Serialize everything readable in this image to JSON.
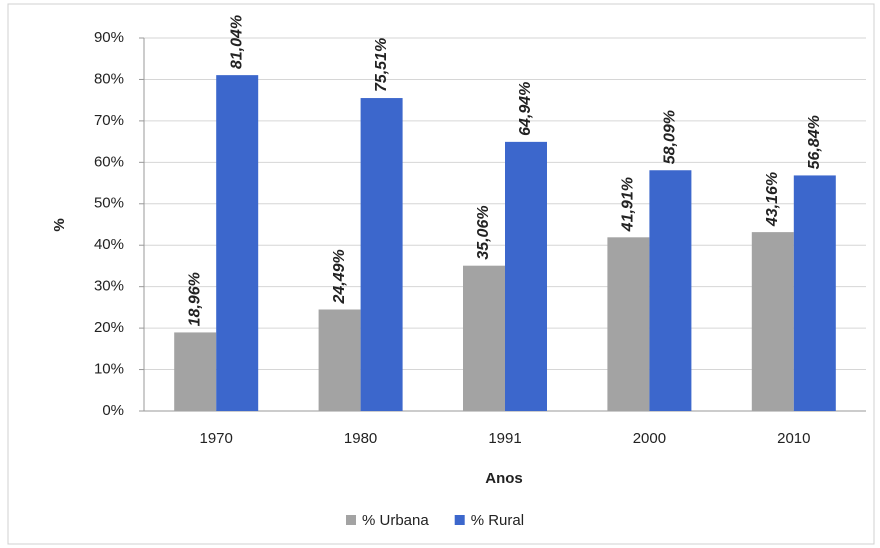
{
  "chart_data": {
    "type": "bar",
    "categories": [
      "1970",
      "1980",
      "1991",
      "2000",
      "2010"
    ],
    "series": [
      {
        "name": "% Urbana",
        "color": "#a3a3a3",
        "values": [
          18.96,
          24.49,
          35.06,
          41.91,
          43.16
        ],
        "value_labels": [
          "18,96%",
          "24,49%",
          "35,06%",
          "41,91%",
          "43,16%"
        ]
      },
      {
        "name": "% Rural",
        "color": "#3c67cc",
        "values": [
          81.04,
          75.51,
          64.94,
          58.09,
          56.84
        ],
        "value_labels": [
          "81,04%",
          "75,51%",
          "64,94%",
          "58,09%",
          "56,84%"
        ]
      }
    ],
    "xlabel": "Anos",
    "ylabel": "%",
    "ylim": [
      0,
      90
    ],
    "yticks": [
      {
        "value": 0,
        "label": "0%"
      },
      {
        "value": 10,
        "label": "10%"
      },
      {
        "value": 20,
        "label": "20%"
      },
      {
        "value": 30,
        "label": "30%"
      },
      {
        "value": 40,
        "label": "40%"
      },
      {
        "value": 50,
        "label": "50%"
      },
      {
        "value": 60,
        "label": "60%"
      },
      {
        "value": 70,
        "label": "70%"
      },
      {
        "value": 80,
        "label": "80%"
      },
      {
        "value": 90,
        "label": "90%"
      }
    ],
    "grid": true,
    "legend": "bottom"
  }
}
